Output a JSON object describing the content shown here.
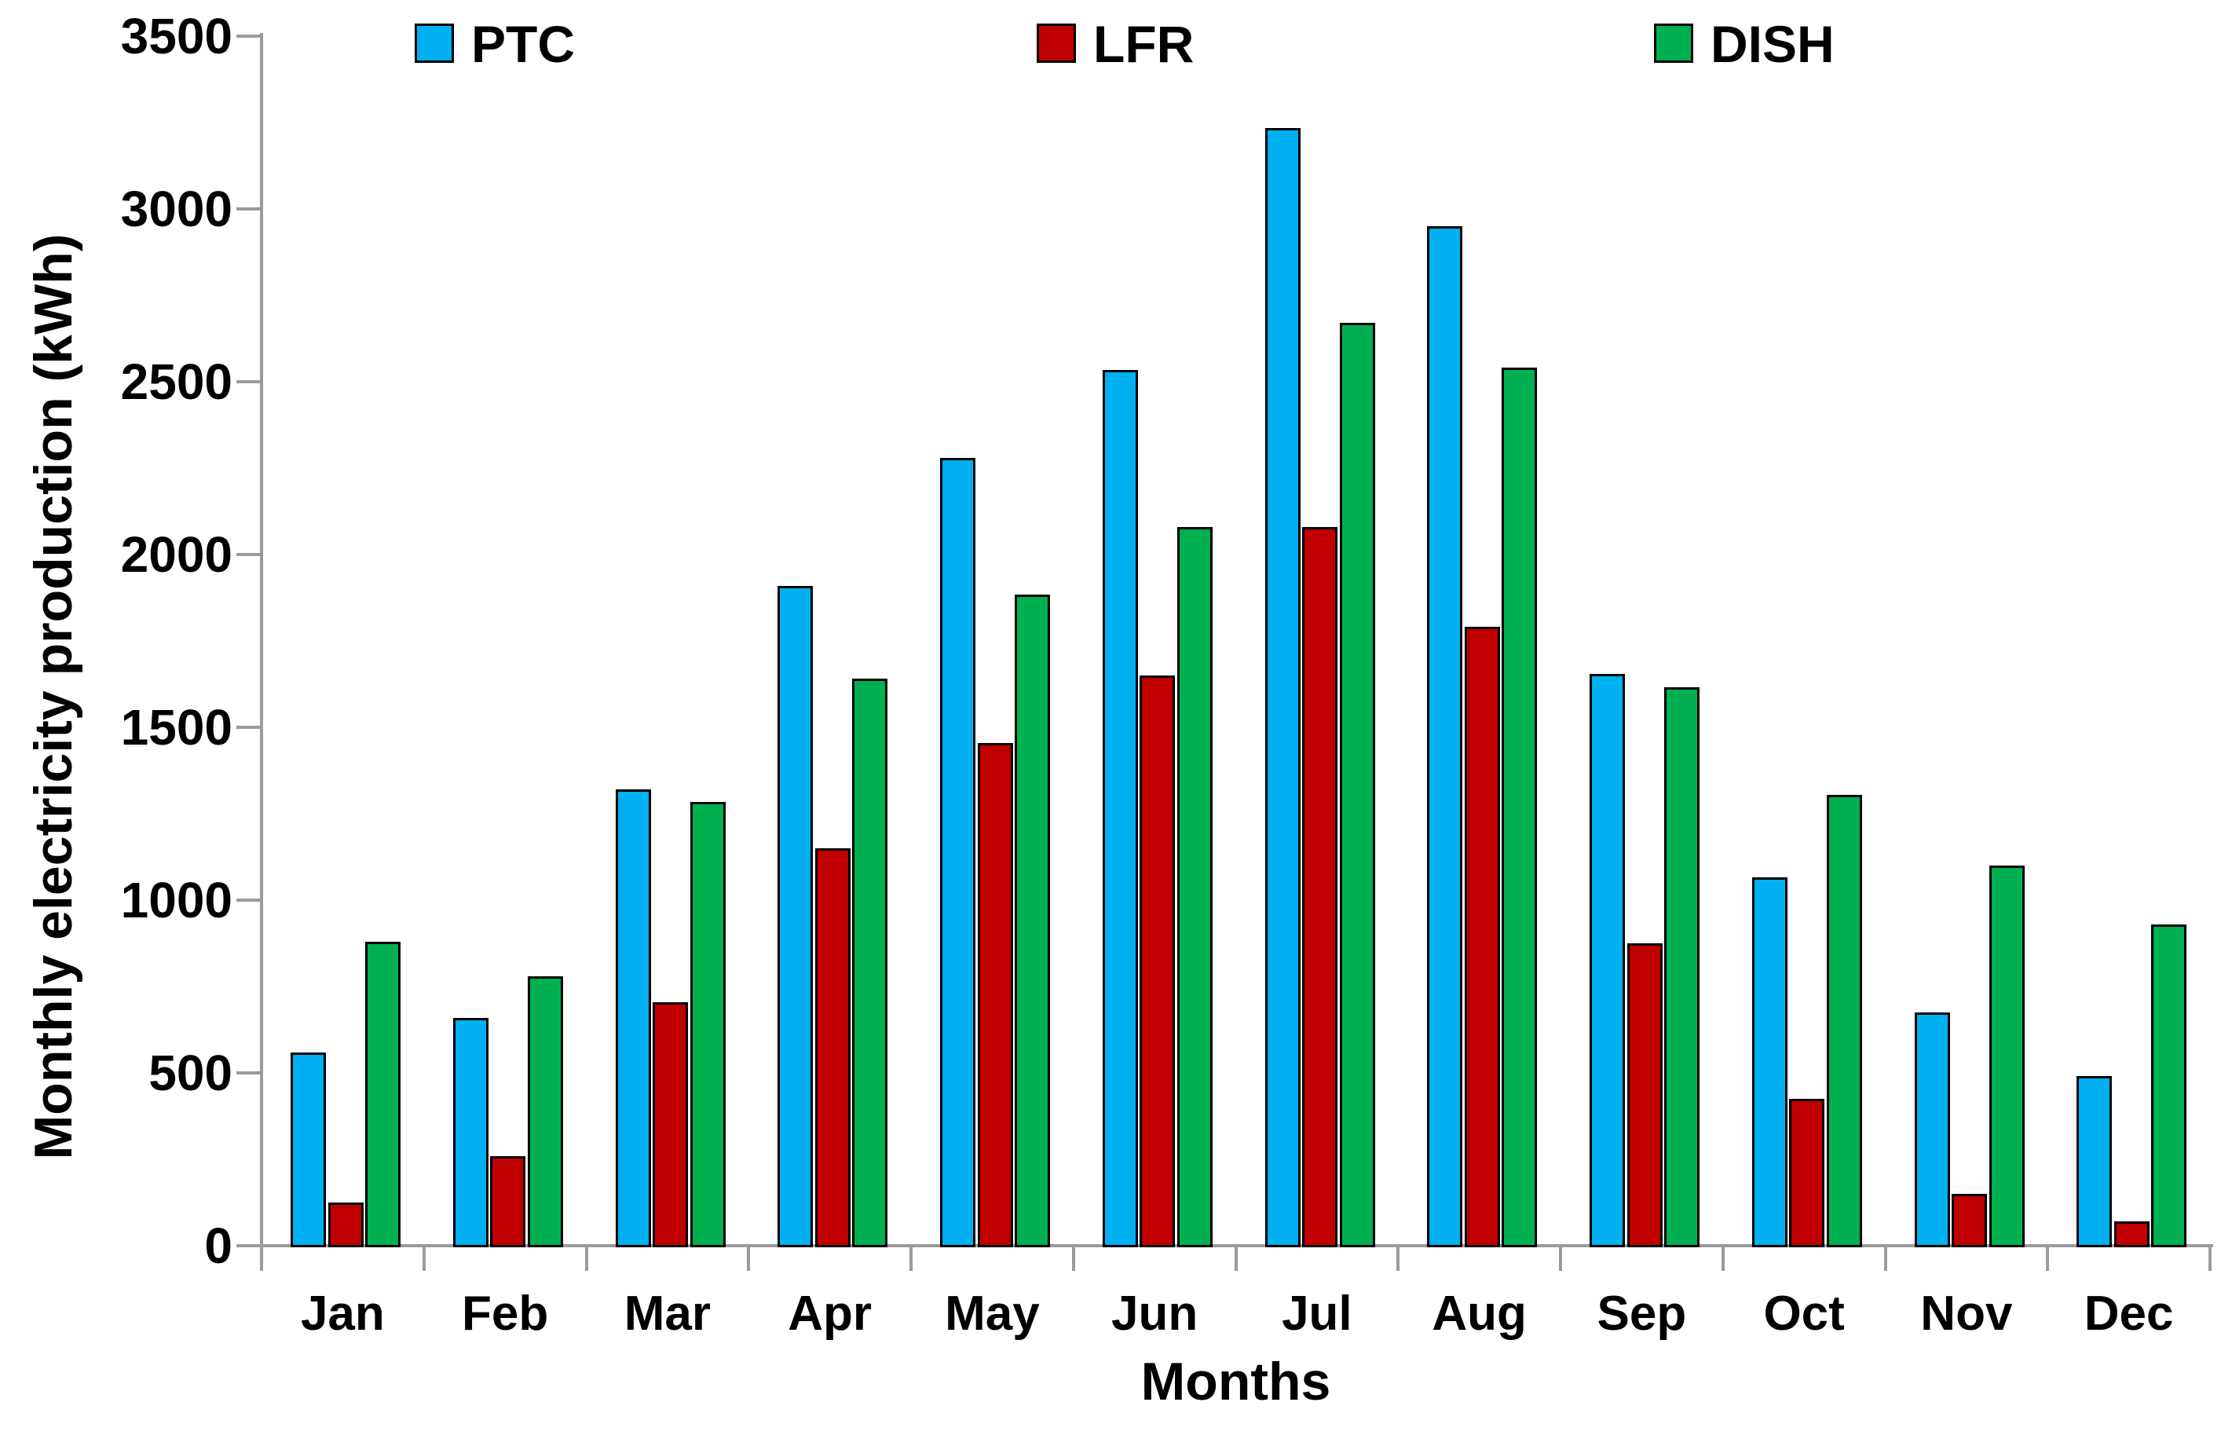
{
  "chart_data": {
    "type": "bar",
    "title": "",
    "xlabel": "Months",
    "ylabel": "Monthly electricity production (kWh)",
    "categories": [
      "Jan",
      "Feb",
      "Mar",
      "Apr",
      "May",
      "Jun",
      "Jul",
      "Aug",
      "Sep",
      "Oct",
      "Nov",
      "Dec"
    ],
    "series": [
      {
        "name": "PTC",
        "color": "#00b0f0",
        "values": [
          560,
          660,
          1320,
          1910,
          2280,
          2535,
          3235,
          2950,
          1655,
          1065,
          675,
          490
        ]
      },
      {
        "name": "LFR",
        "color": "#c00000",
        "values": [
          125,
          260,
          705,
          1150,
          1455,
          1650,
          2080,
          1790,
          875,
          425,
          150,
          70
        ]
      },
      {
        "name": "DISH",
        "color": "#00b050",
        "values": [
          880,
          780,
          1285,
          1640,
          1885,
          2080,
          2670,
          2540,
          1615,
          1305,
          1100,
          930
        ]
      }
    ],
    "ylim": [
      0,
      3500
    ],
    "ytick_step": 500,
    "ytick_labels": [
      "0",
      "500",
      "1000",
      "1500",
      "2000",
      "2500",
      "3000",
      "3500"
    ],
    "grid": false,
    "legend_position": "top",
    "bar_border_color": "#000000",
    "axis_color": "#9b9b9b",
    "text_color": "#000000"
  }
}
